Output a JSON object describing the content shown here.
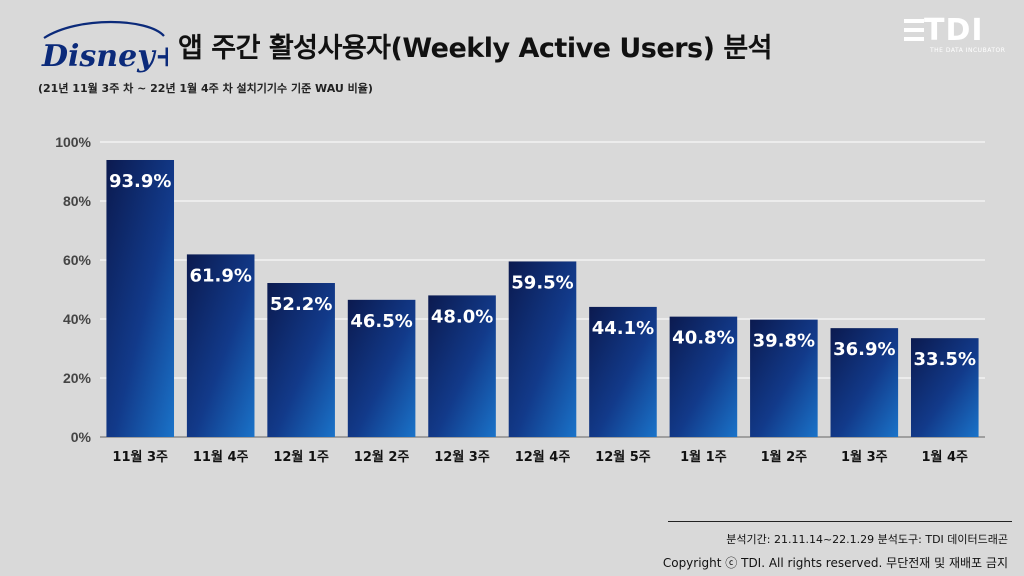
{
  "header": {
    "brand_logo_text": "Disney+",
    "title": "앱 주간 활성사용자(Weekly Active Users) 분석",
    "subtitle": "(21년 11월 3주 차 ~ 22년 1월 4주 차 설치기기수 기준 WAU 비율)",
    "company_logo_text": "TDI",
    "company_tagline": "THE DATA INCUBATOR"
  },
  "chart_data": {
    "type": "bar",
    "categories": [
      "11월 3주",
      "11월 4주",
      "12월 1주",
      "12월 2주",
      "12월 3주",
      "12월 4주",
      "12월 5주",
      "1월 1주",
      "1월 2주",
      "1월 3주",
      "1월 4주"
    ],
    "values": [
      93.9,
      61.9,
      52.2,
      46.5,
      48.0,
      59.5,
      44.1,
      40.8,
      39.8,
      36.9,
      33.5
    ],
    "value_labels": [
      "93.9%",
      "61.9%",
      "52.2%",
      "46.5%",
      "48.0%",
      "59.5%",
      "44.1%",
      "40.8%",
      "39.8%",
      "36.9%",
      "33.5%"
    ],
    "yticks": [
      "0%",
      "20%",
      "40%",
      "60%",
      "80%",
      "100%"
    ],
    "ylim": [
      0,
      100
    ],
    "grid": true,
    "colors": {
      "bar_dark": "#0b1a4f",
      "bar_light": "#1a73c9",
      "grid": "#ffffff",
      "axis": "#8c8c8c"
    }
  },
  "footer": {
    "period": "분석기간: 21.11.14~22.1.29     분석도구: TDI 데이터드래곤",
    "copyright": "Copyright ⓒ TDI. All rights reserved. 무단전재 및 재배포 금지"
  }
}
